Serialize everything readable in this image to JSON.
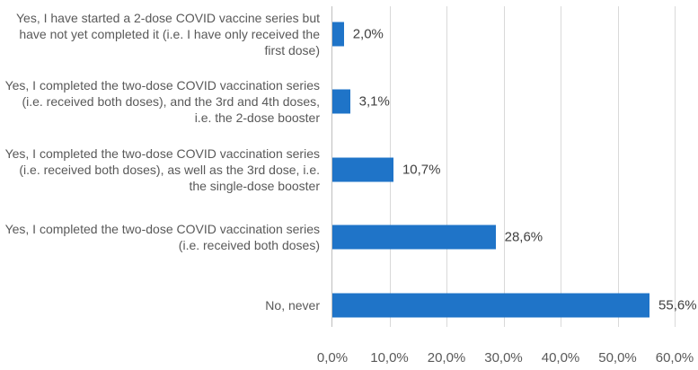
{
  "chart_data": {
    "type": "bar",
    "orientation": "horizontal",
    "categories": [
      "Yes, I have started a 2-dose COVID vaccine series but have not yet completed it (i.e. I have only received the first dose)",
      "Yes, I completed the two-dose COVID vaccination series (i.e. received both doses), and the 3rd and 4th doses, i.e. the 2-dose booster",
      "Yes, I completed the two-dose COVID vaccination series (i.e. received both doses), as well as the 3rd dose, i.e. the single-dose booster",
      "Yes, I completed the two-dose COVID vaccination series (i.e. received both doses)",
      "No, never"
    ],
    "category_lines": [
      [
        "Yes, I have started a 2-dose COVID vaccine series but",
        "have not yet completed it (i.e. I have only received the",
        "first dose)"
      ],
      [
        "Yes, I completed the two-dose COVID vaccination series",
        "(i.e. received both doses), and the 3rd and 4th doses,",
        "i.e. the 2-dose booster"
      ],
      [
        "Yes, I completed the two-dose COVID vaccination series",
        "(i.e. received both doses), as well as the 3rd dose, i.e.",
        "the single-dose booster"
      ],
      [
        "Yes, I completed the two-dose COVID vaccination series",
        "(i.e. received both doses)"
      ],
      [
        "No, never"
      ]
    ],
    "values": [
      2.0,
      3.1,
      10.7,
      28.6,
      55.6
    ],
    "value_labels": [
      "2,0%",
      "3,1%",
      "10,7%",
      "28,6%",
      "55,6%"
    ],
    "xlim": [
      0,
      60
    ],
    "x_ticks": [
      "0,0%",
      "10,0%",
      "20,0%",
      "30,0%",
      "40,0%",
      "50,0%",
      "60,0%"
    ],
    "grid": true,
    "legend": "none",
    "title": "",
    "xlabel": "",
    "ylabel": "",
    "bar_color": "#1f74c8"
  }
}
